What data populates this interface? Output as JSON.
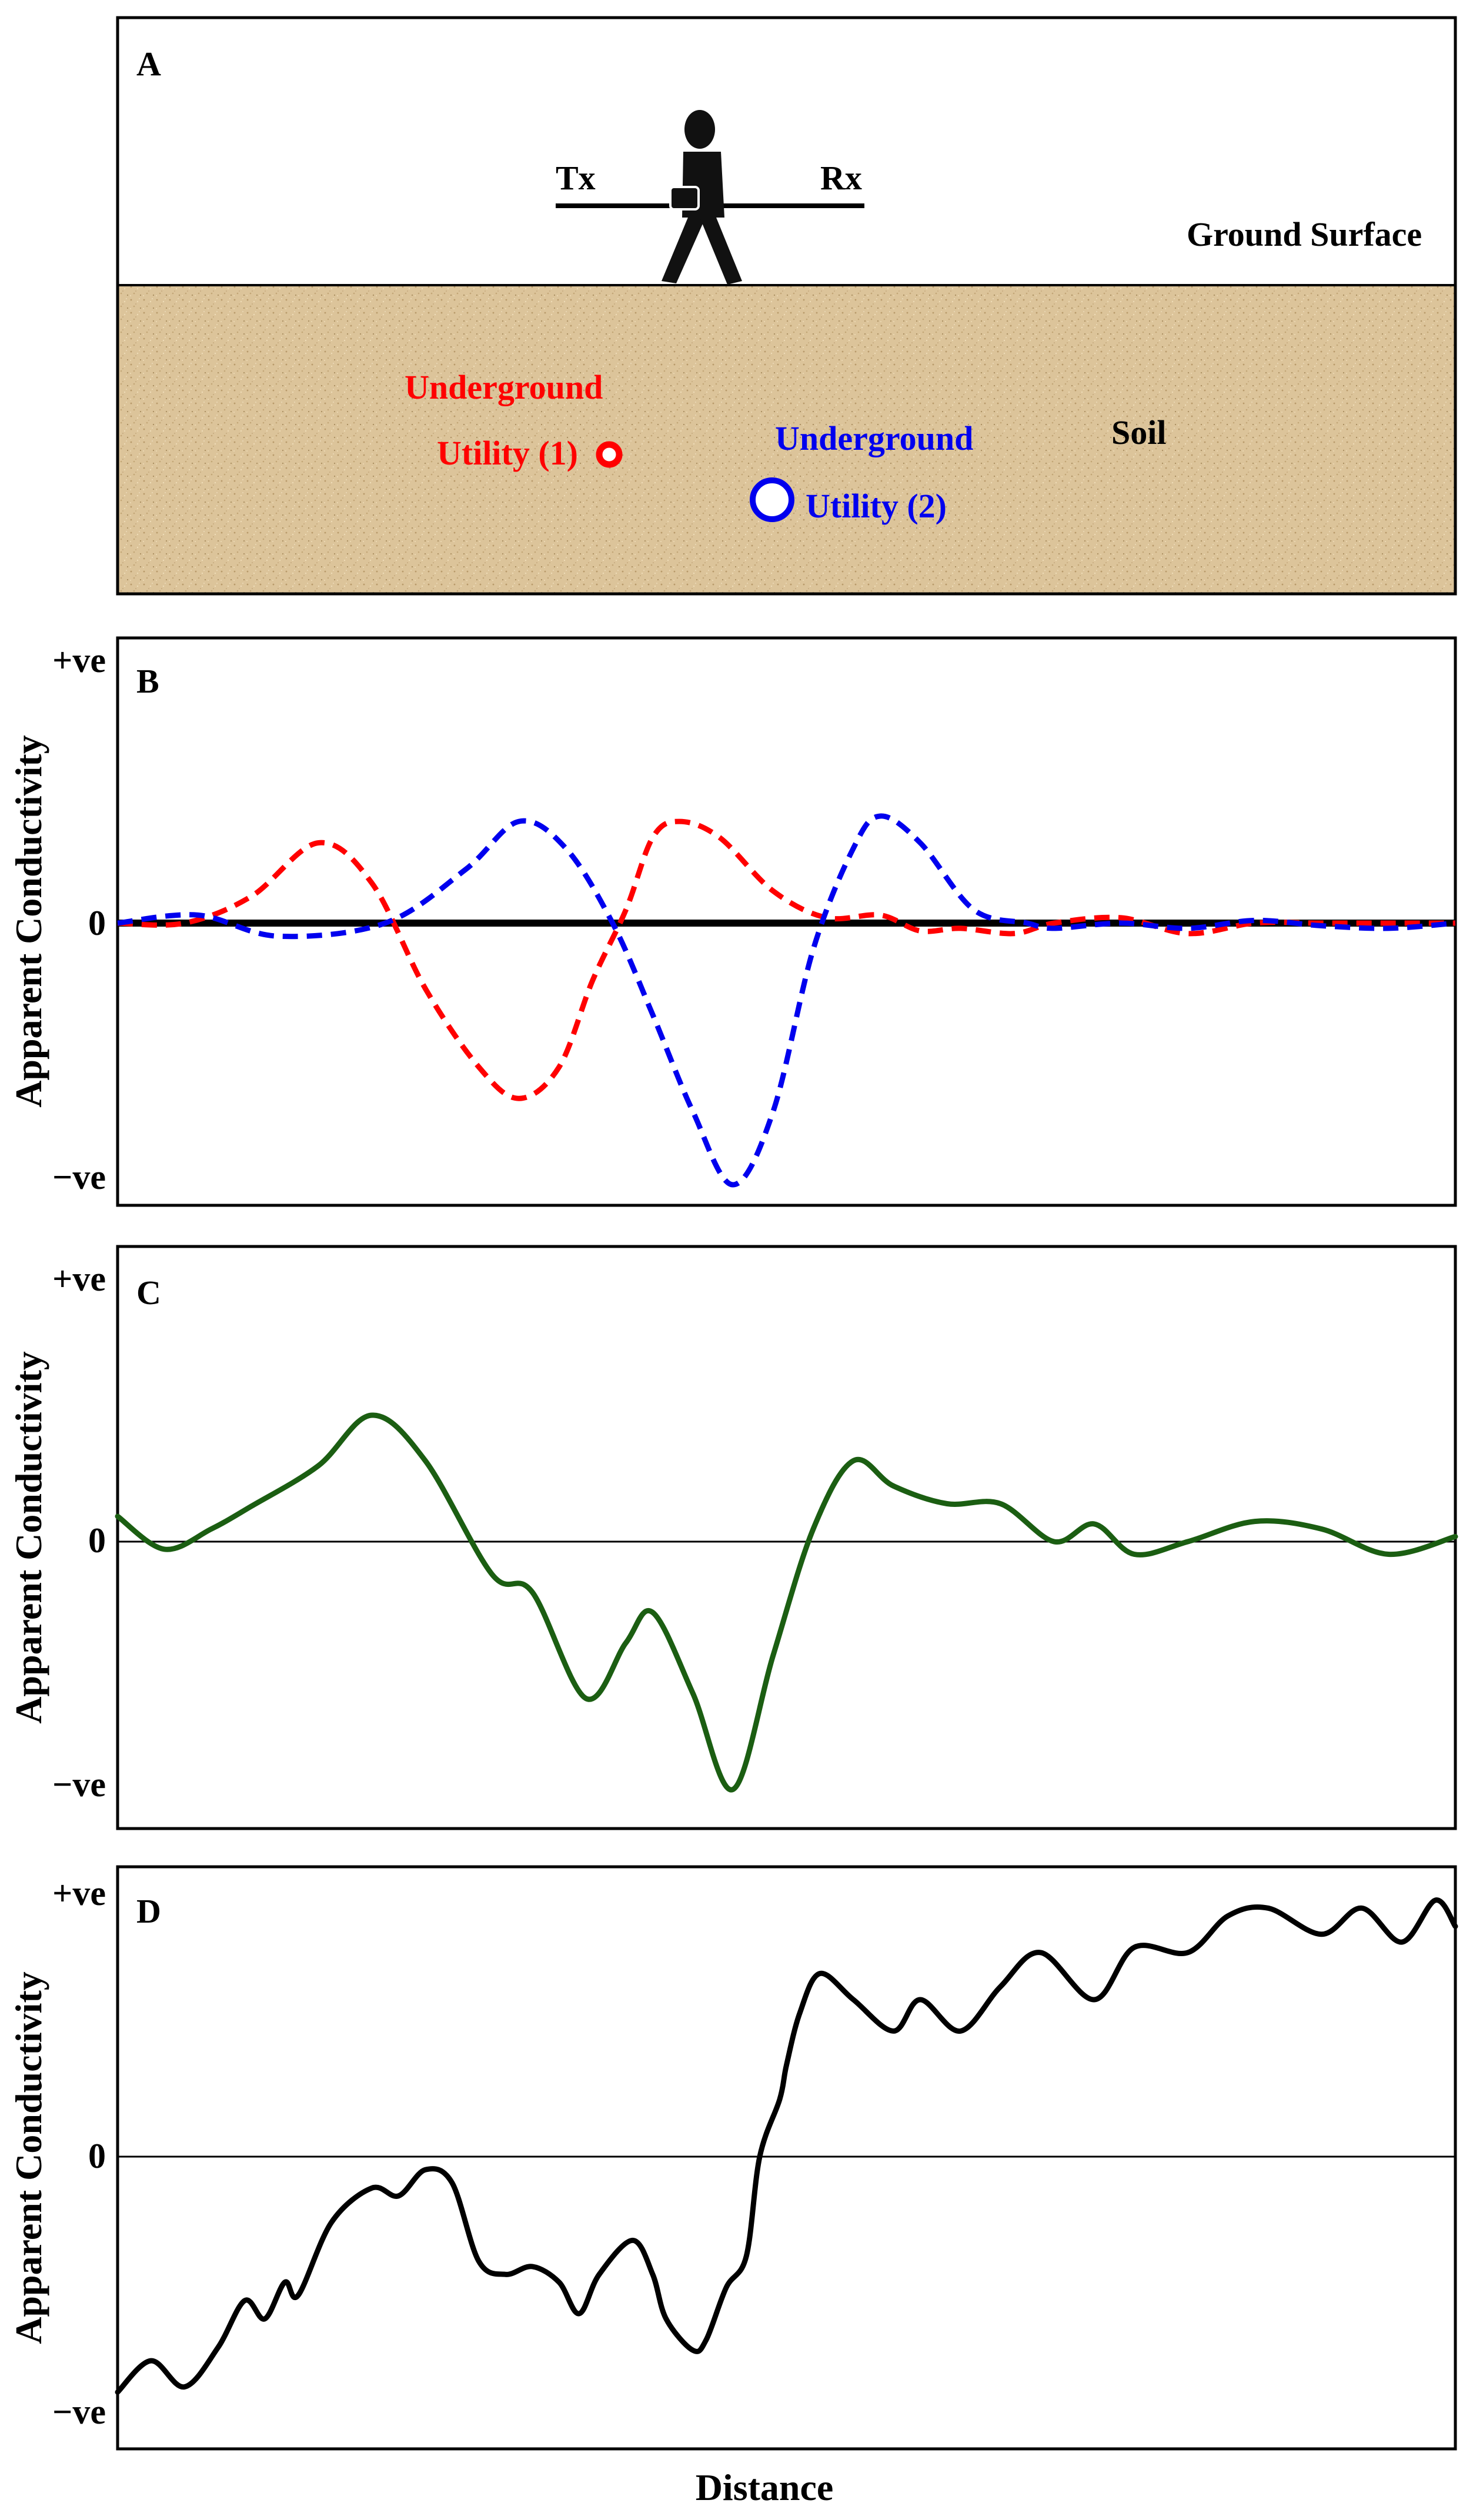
{
  "panels": {
    "a": {
      "letter": "A",
      "tx_label": "Tx",
      "rx_label": "Rx",
      "ground_label": "Ground Surface",
      "soil_label": "Soil",
      "utility1_line1": "Underground",
      "utility1_line2": "Utility (1)",
      "utility2_line1": "Underground",
      "utility2_line2": "Utility (2)",
      "colors": {
        "utility1": "#ff0000",
        "utility2": "#0000ee",
        "soil": "#dcc49a"
      }
    },
    "b": {
      "letter": "B"
    },
    "c": {
      "letter": "C"
    },
    "d": {
      "letter": "D"
    }
  },
  "y_axis_label": "Apparent Conductivity",
  "x_axis_label": "Distance",
  "ticks": {
    "pos": "+ve",
    "zero": "0",
    "neg": "−ve"
  },
  "chart_data": [
    {
      "panel": "B",
      "type": "line",
      "ylabel": "Apparent Conductivity",
      "y_ticks": [
        "+ve",
        "0",
        "−ve"
      ],
      "ylim": [
        -1,
        1
      ],
      "xlim": [
        0,
        1
      ],
      "series": [
        {
          "color": "#ff0000",
          "style": "dashed",
          "x": [
            0,
            0.05,
            0.1,
            0.15,
            0.19,
            0.23,
            0.27,
            0.3,
            0.33,
            0.355,
            0.38,
            0.4,
            0.42,
            0.45,
            0.49,
            0.53,
            0.57,
            0.6,
            0.63,
            0.67,
            0.7,
            0.75,
            0.8,
            0.85,
            0.9,
            0.95,
            1
          ],
          "y": [
            0,
            0,
            0.1,
            0.3,
            0.15,
            -0.25,
            -0.55,
            -0.67,
            -0.55,
            -0.22,
            0.05,
            0.32,
            0.38,
            0.32,
            0.12,
            0.02,
            0.03,
            -0.03,
            -0.02,
            -0.04,
            0,
            0.02,
            -0.04,
            0,
            0,
            0,
            0
          ]
        },
        {
          "color": "#0000ee",
          "style": "dashed",
          "x": [
            0,
            0.06,
            0.12,
            0.2,
            0.26,
            0.3,
            0.335,
            0.37,
            0.4,
            0.43,
            0.46,
            0.49,
            0.52,
            0.55,
            0.57,
            0.6,
            0.64,
            0.68,
            0.7,
            0.75,
            0.8,
            0.85,
            0.9,
            0.95,
            1
          ],
          "y": [
            0,
            0.03,
            -0.05,
            0,
            0.2,
            0.38,
            0.28,
            0,
            -0.35,
            -0.72,
            -1.0,
            -0.72,
            -0.1,
            0.28,
            0.4,
            0.3,
            0.05,
            0,
            -0.02,
            0,
            -0.02,
            0.01,
            -0.01,
            -0.02,
            0
          ]
        }
      ]
    },
    {
      "panel": "C",
      "type": "line",
      "ylabel": "Apparent Conductivity",
      "y_ticks": [
        "+ve",
        "0",
        "−ve"
      ],
      "ylim": [
        -1,
        1
      ],
      "xlim": [
        0,
        1
      ],
      "series": [
        {
          "color": "#1b5e12",
          "style": "solid",
          "x": [
            0,
            0.035,
            0.07,
            0.1,
            0.15,
            0.19,
            0.23,
            0.28,
            0.31,
            0.35,
            0.38,
            0.4,
            0.43,
            0.46,
            0.49,
            0.52,
            0.55,
            0.58,
            0.62,
            0.66,
            0.7,
            0.73,
            0.76,
            0.8,
            0.85,
            0.9,
            0.95,
            1
          ],
          "y": [
            0.1,
            -0.03,
            0.05,
            0.14,
            0.3,
            0.5,
            0.32,
            -0.13,
            -0.2,
            -0.62,
            -0.4,
            -0.28,
            -0.6,
            -0.98,
            -0.45,
            0.05,
            0.32,
            0.22,
            0.15,
            0.15,
            0,
            0.07,
            -0.05,
            0,
            0.08,
            0.05,
            -0.05,
            0.02
          ]
        }
      ]
    },
    {
      "panel": "D",
      "type": "line",
      "ylabel": "Apparent Conductivity",
      "y_ticks": [
        "+ve",
        "0",
        "−ve"
      ],
      "ylim": [
        -1,
        1
      ],
      "xlim": [
        0,
        1
      ],
      "series": [
        {
          "color": "#000000",
          "style": "solid",
          "x": [
            0,
            0.025,
            0.05,
            0.075,
            0.095,
            0.11,
            0.125,
            0.135,
            0.16,
            0.19,
            0.21,
            0.23,
            0.25,
            0.27,
            0.29,
            0.31,
            0.33,
            0.345,
            0.36,
            0.385,
            0.4,
            0.41,
            0.43,
            0.44,
            0.455,
            0.47,
            0.48,
            0.495,
            0.5,
            0.51,
            0.525,
            0.55,
            0.58,
            0.6,
            0.63,
            0.66,
            0.69,
            0.73,
            0.76,
            0.8,
            0.83,
            0.86,
            0.9,
            0.93,
            0.96,
            0.985,
            1
          ],
          "y": [
            -0.9,
            -0.78,
            -0.88,
            -0.73,
            -0.55,
            -0.62,
            -0.48,
            -0.53,
            -0.25,
            -0.12,
            -0.15,
            -0.05,
            -0.1,
            -0.4,
            -0.45,
            -0.42,
            -0.48,
            -0.6,
            -0.45,
            -0.32,
            -0.45,
            -0.62,
            -0.74,
            -0.7,
            -0.5,
            -0.38,
            0.0,
            0.22,
            0.35,
            0.55,
            0.7,
            0.6,
            0.48,
            0.6,
            0.48,
            0.65,
            0.78,
            0.6,
            0.8,
            0.78,
            0.92,
            0.95,
            0.85,
            0.95,
            0.82,
            0.98,
            0.88
          ]
        }
      ]
    }
  ]
}
